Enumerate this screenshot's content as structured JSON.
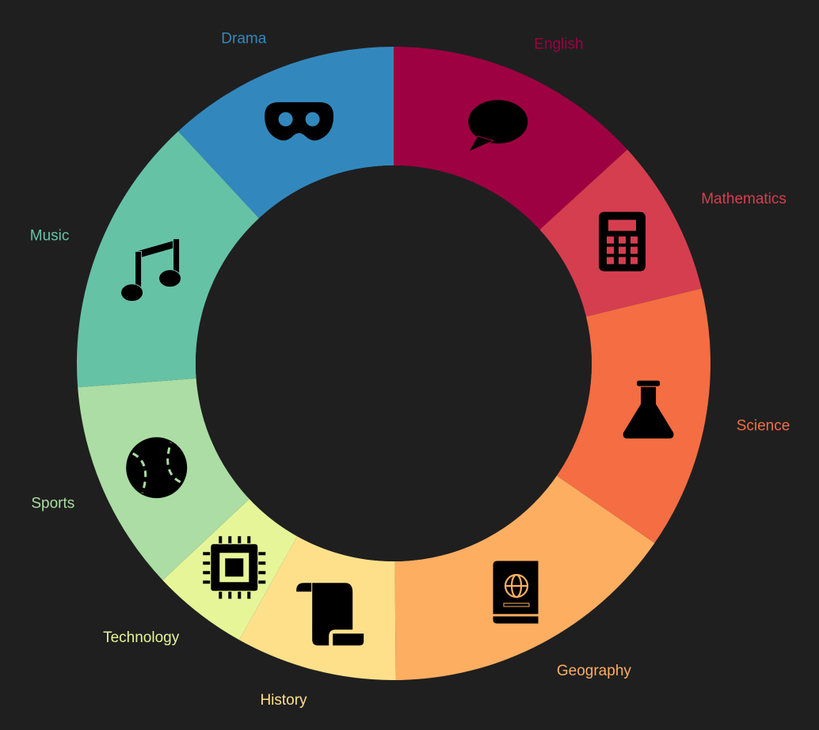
{
  "chart_data": {
    "type": "pie",
    "variant": "donut",
    "unit": "percent",
    "start": "12 o'clock, clockwise",
    "slices": [
      {
        "label": "English",
        "value": 13.2,
        "color": "#9e0142",
        "icon": "speech-bubble-icon"
      },
      {
        "label": "Mathematics",
        "value": 8.0,
        "color": "#d53e4f",
        "icon": "calculator-icon"
      },
      {
        "label": "Science",
        "value": 13.4,
        "color": "#f46d43",
        "icon": "flask-icon"
      },
      {
        "label": "Geography",
        "value": 15.3,
        "color": "#fdae61",
        "icon": "atlas-book-icon"
      },
      {
        "label": "History",
        "value": 8.2,
        "color": "#fee08b",
        "icon": "scroll-icon"
      },
      {
        "label": "Technology",
        "value": 4.9,
        "color": "#e6f598",
        "icon": "microchip-icon"
      },
      {
        "label": "Sports",
        "value": 10.8,
        "color": "#abdda4",
        "icon": "baseball-icon"
      },
      {
        "label": "Music",
        "value": 14.3,
        "color": "#66c2a5",
        "icon": "music-notes-icon"
      },
      {
        "label": "Drama",
        "value": 11.9,
        "color": "#3288bd",
        "icon": "mask-icon"
      }
    ]
  }
}
